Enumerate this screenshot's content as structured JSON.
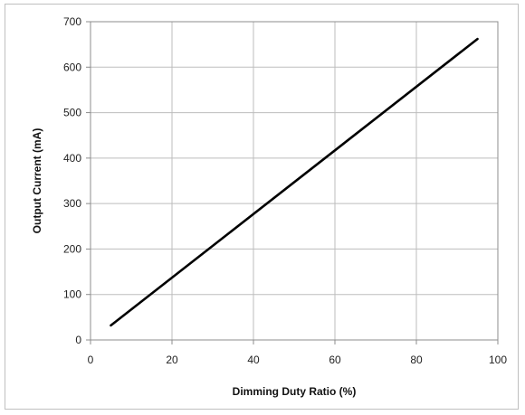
{
  "chart_data": {
    "type": "line",
    "xlabel": "Dimming Duty Ratio (%)",
    "ylabel": "Output Current (mA)",
    "xlim": [
      0,
      100
    ],
    "ylim": [
      0,
      700
    ],
    "x_ticks": [
      0,
      20,
      40,
      60,
      80,
      100
    ],
    "y_ticks": [
      0,
      100,
      200,
      300,
      400,
      500,
      600,
      700
    ],
    "grid": true,
    "series": [
      {
        "color": "#000000",
        "x": [
          5,
          95
        ],
        "y": [
          32,
          662
        ]
      }
    ]
  }
}
